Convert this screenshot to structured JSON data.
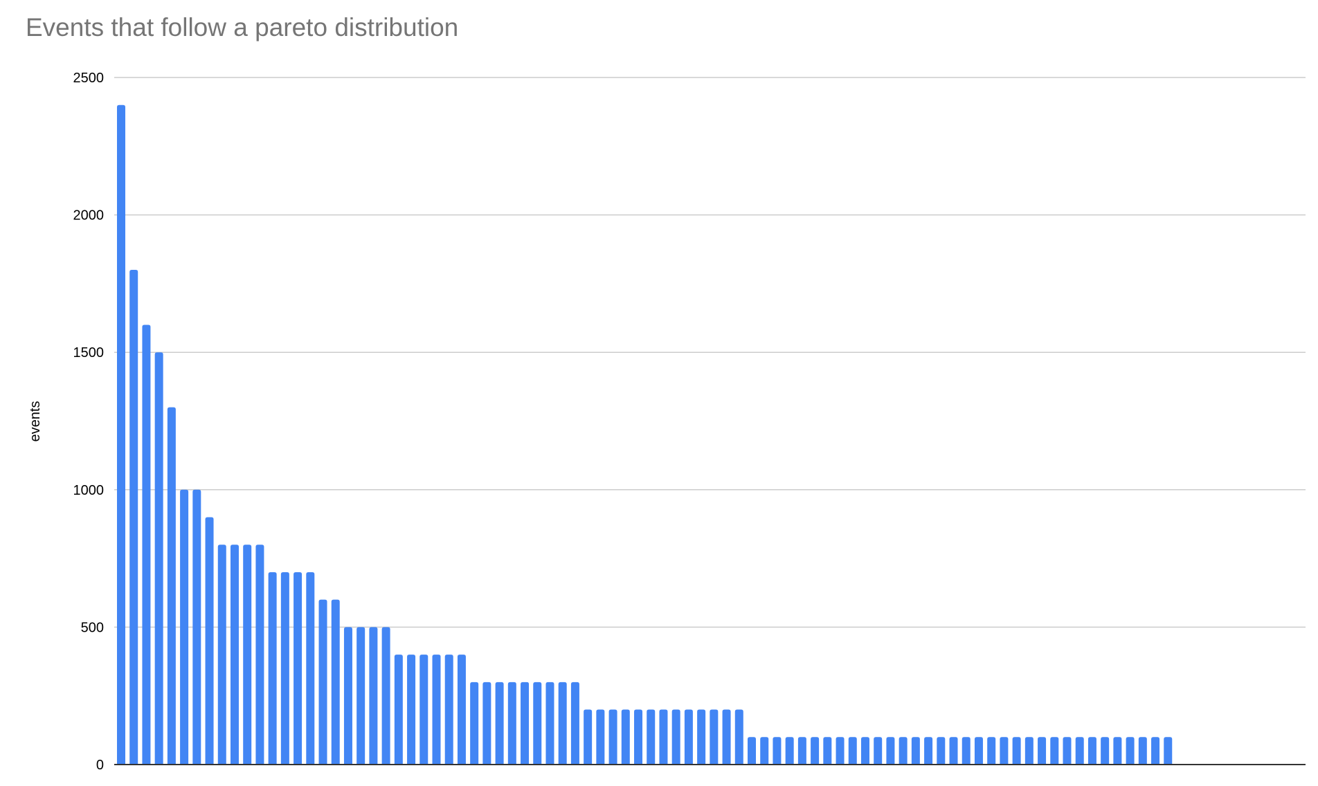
{
  "chart_data": {
    "type": "bar",
    "title": "Events that follow a pareto distribution",
    "xlabel": "",
    "ylabel": "events",
    "ylim": [
      0,
      2500
    ],
    "yticks": [
      "0",
      "500",
      "1000",
      "1500",
      "2000",
      "2500"
    ],
    "grid": true,
    "bar_color": "#4285f4",
    "values": [
      2400,
      1800,
      1600,
      1500,
      1300,
      1000,
      1000,
      900,
      800,
      800,
      800,
      800,
      700,
      700,
      700,
      700,
      600,
      600,
      500,
      500,
      500,
      500,
      400,
      400,
      400,
      400,
      400,
      400,
      300,
      300,
      300,
      300,
      300,
      300,
      300,
      300,
      300,
      200,
      200,
      200,
      200,
      200,
      200,
      200,
      200,
      200,
      200,
      200,
      200,
      200,
      100,
      100,
      100,
      100,
      100,
      100,
      100,
      100,
      100,
      100,
      100,
      100,
      100,
      100,
      100,
      100,
      100,
      100,
      100,
      100,
      100,
      100,
      100,
      100,
      100,
      100,
      100,
      100,
      100,
      100,
      100,
      100,
      100,
      100
    ]
  }
}
